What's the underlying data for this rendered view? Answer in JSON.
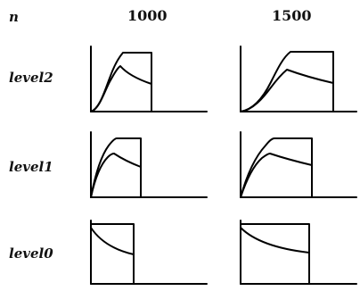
{
  "n_label": "n",
  "columns": [
    "1000",
    "1500"
  ],
  "rows": [
    "level2",
    "level1",
    "level0"
  ],
  "chart_data": {
    "type": "line",
    "title": "",
    "xlabel": "",
    "ylabel": "",
    "grid": false,
    "col_headers": [
      "1000",
      "1500"
    ],
    "row_headers": [
      "level2",
      "level1",
      "level0"
    ],
    "panels": [
      {
        "row": "level2",
        "col": "1000",
        "shape": "sigmoid-plateau-with-peak-decay"
      },
      {
        "row": "level2",
        "col": "1500",
        "shape": "sigmoid-plateau-with-peak-decay"
      },
      {
        "row": "level1",
        "col": "1000",
        "shape": "concave-plateau-with-peak-decay"
      },
      {
        "row": "level1",
        "col": "1500",
        "shape": "concave-plateau-with-peak-decay"
      },
      {
        "row": "level0",
        "col": "1000",
        "shape": "box-with-exponential-decay"
      },
      {
        "row": "level0",
        "col": "1500",
        "shape": "box-with-exponential-decay"
      }
    ]
  }
}
